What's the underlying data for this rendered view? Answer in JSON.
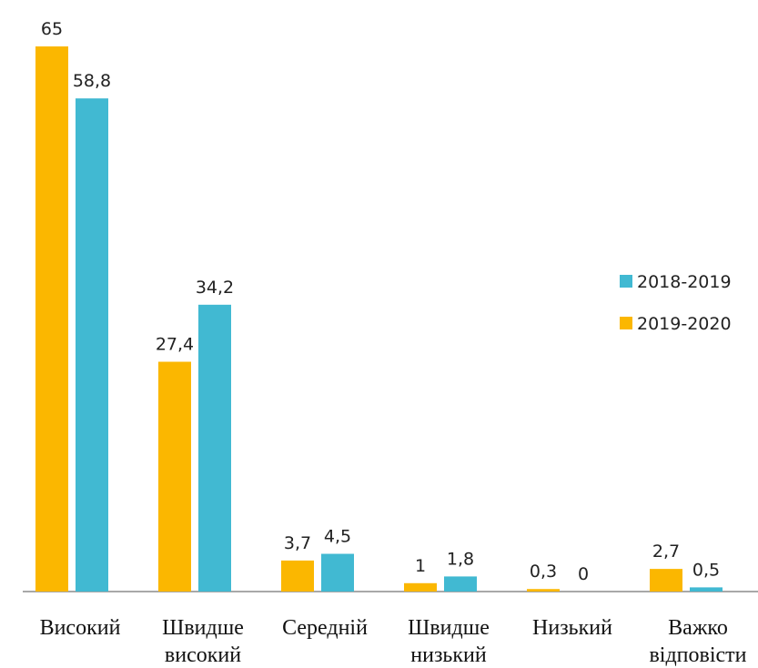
{
  "chart_data": {
    "type": "bar",
    "categories": [
      [
        "Високий"
      ],
      [
        "Швидше",
        "високий"
      ],
      [
        "Середній"
      ],
      [
        "Швидше",
        "низький"
      ],
      [
        "Низький"
      ],
      [
        "Важко",
        "відповісти"
      ]
    ],
    "series": [
      {
        "name": "2019-2020",
        "color": "#FBB700",
        "values": [
          65,
          27.4,
          3.7,
          1,
          0.3,
          2.7
        ],
        "labels": [
          "65",
          "27,4",
          "3,7",
          "1",
          "0,3",
          "2,7"
        ]
      },
      {
        "name": "2018-2019",
        "color": "#41B9D2",
        "values": [
          58.8,
          34.2,
          4.5,
          1.8,
          0,
          0.5
        ],
        "labels": [
          "58,8",
          "34,2",
          "4,5",
          "1,8",
          "0",
          "0,5"
        ]
      }
    ],
    "legend_order": [
      "2018-2019",
      "2019-2020"
    ],
    "legend_position": "right",
    "ylim": [
      0,
      65
    ],
    "grid": false
  }
}
